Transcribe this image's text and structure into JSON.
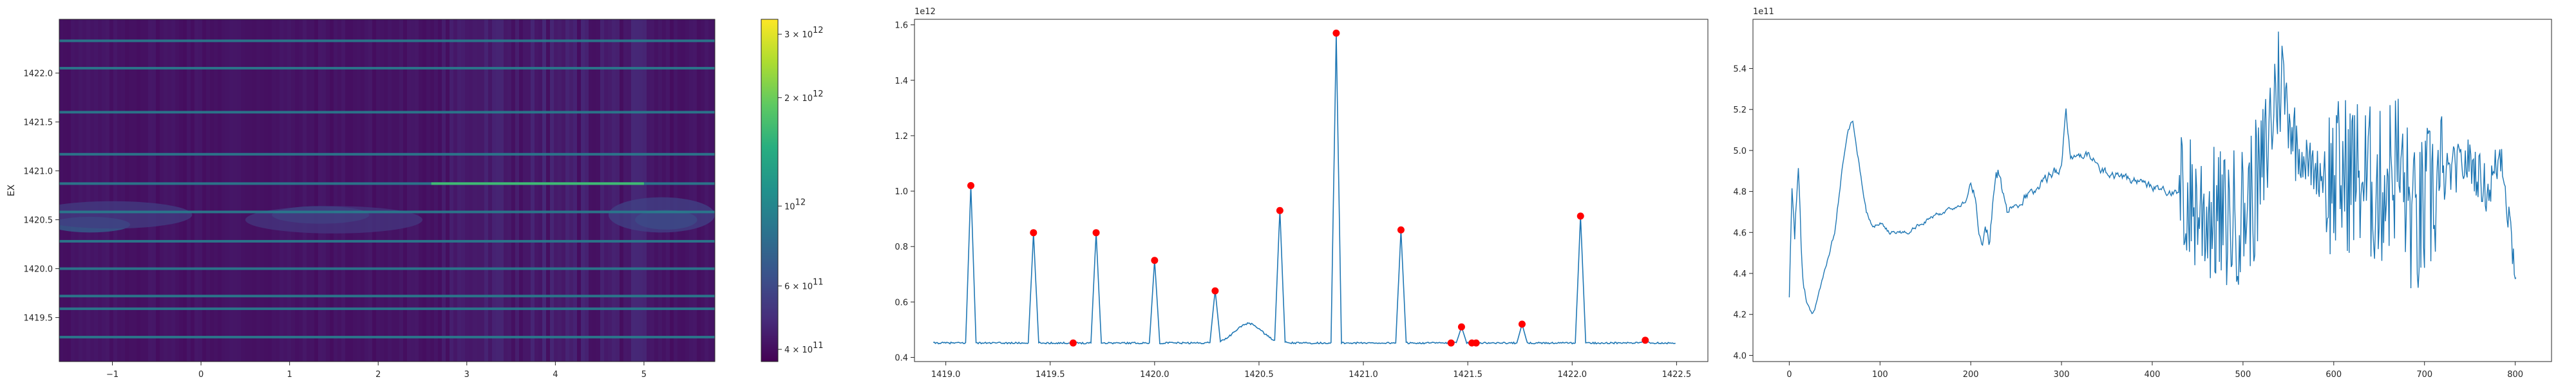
{
  "colors": {
    "line": "#1f77b4",
    "peak": "#ff0000",
    "axis": "#262626",
    "cmap": [
      "#440154",
      "#472d7b",
      "#3b528b",
      "#2c728e",
      "#21918c",
      "#28ae80",
      "#5ec962",
      "#addc30",
      "#fde725"
    ]
  },
  "chart_data": [
    {
      "type": "heatmap",
      "title": "",
      "xlabel": "",
      "ylabel": "EX",
      "xlim": [
        -1.6,
        5.8
      ],
      "ylim": [
        1419.05,
        1422.55
      ],
      "x_ticks": [
        -1,
        0,
        1,
        2,
        3,
        4,
        5
      ],
      "x_tick_labels": [
        "−1",
        "0",
        "1",
        "2",
        "3",
        "4",
        "5"
      ],
      "y_ticks": [
        1419.5,
        1420.0,
        1420.5,
        1421.0,
        1421.5,
        1422.0
      ],
      "y_tick_labels": [
        "1419.5",
        "1420.0",
        "1420.5",
        "1421.0",
        "1421.5",
        "1422.0"
      ],
      "bright_rows": [
        1419.3,
        1419.59,
        1419.72,
        1420.0,
        1420.28,
        1420.58,
        1420.87,
        1421.17,
        1421.6,
        1422.05,
        1422.33
      ],
      "colorbar": {
        "scale": "log",
        "range": [
          370000000000.0,
          3300000000000.0
        ],
        "ticks": [
          400000000000.0,
          600000000000.0,
          1000000000000.0,
          2000000000000.0,
          3000000000000.0
        ],
        "tick_labels": [
          {
            "base": "4 × 10",
            "exp": "11"
          },
          {
            "base": "6 × 10",
            "exp": "11"
          },
          {
            "base": "10",
            "exp": "12"
          },
          {
            "base": "2 × 10",
            "exp": "12"
          },
          {
            "base": "3 × 10",
            "exp": "12"
          }
        ]
      }
    },
    {
      "type": "line",
      "title": "",
      "xlabel": "",
      "ylabel": "",
      "xlim": [
        1418.85,
        1422.65
      ],
      "ylim": [
        0.385,
        1.62
      ],
      "scale_label": "1e12",
      "x_ticks": [
        1419.0,
        1419.5,
        1420.0,
        1420.5,
        1421.0,
        1421.5,
        1422.0,
        1422.5
      ],
      "x_tick_labels": [
        "1419.0",
        "1419.5",
        "1420.0",
        "1420.5",
        "1421.0",
        "1421.5",
        "1422.0",
        "1422.5"
      ],
      "y_ticks": [
        0.4,
        0.6,
        0.8,
        1.0,
        1.2,
        1.4,
        1.6
      ],
      "y_tick_labels": [
        "0.4",
        "0.6",
        "0.8",
        "1.0",
        "1.2",
        "1.4",
        "1.6"
      ],
      "baseline": 0.452,
      "x_end": 1422.5,
      "spikes": [
        [
          1419.12,
          1.02
        ],
        [
          1419.42,
          0.85
        ],
        [
          1419.72,
          0.85
        ],
        [
          1420.0,
          0.75
        ],
        [
          1420.29,
          0.64
        ],
        [
          1420.6,
          0.93
        ],
        [
          1420.87,
          1.57
        ],
        [
          1421.18,
          0.86
        ],
        [
          1421.47,
          0.51
        ],
        [
          1421.76,
          0.52
        ],
        [
          1422.04,
          0.91
        ],
        [
          1422.35,
          0.462
        ]
      ],
      "bump": {
        "center": 1420.45,
        "width": 0.09,
        "height": 0.07
      },
      "peaks": {
        "x": [
          1419.12,
          1419.42,
          1419.61,
          1419.72,
          1420.0,
          1420.29,
          1420.6,
          1420.87,
          1421.18,
          1421.42,
          1421.47,
          1421.52,
          1421.54,
          1421.76,
          1422.04,
          1422.35
        ],
        "y": [
          1.02,
          0.85,
          0.452,
          0.85,
          0.75,
          0.64,
          0.93,
          1.57,
          0.86,
          0.452,
          0.51,
          0.452,
          0.452,
          0.52,
          0.91,
          0.462
        ]
      }
    },
    {
      "type": "line",
      "title": "",
      "xlabel": "",
      "ylabel": "",
      "xlim": [
        -40,
        840
      ],
      "ylim": [
        3.97,
        5.64
      ],
      "scale_label": "1e11",
      "x_ticks": [
        0,
        100,
        200,
        300,
        400,
        500,
        600,
        700,
        800
      ],
      "x_tick_labels": [
        "0",
        "100",
        "200",
        "300",
        "400",
        "500",
        "600",
        "700",
        "800"
      ],
      "y_ticks": [
        4.0,
        4.2,
        4.4,
        4.6,
        4.8,
        5.0,
        5.2,
        5.4
      ],
      "y_tick_labels": [
        "4.0",
        "4.2",
        "4.4",
        "4.6",
        "4.8",
        "5.0",
        "5.2",
        "5.4"
      ],
      "n_points": 802,
      "anchors": [
        [
          0,
          4.3
        ],
        [
          3,
          4.85
        ],
        [
          6,
          4.6
        ],
        [
          10,
          4.88
        ],
        [
          14,
          4.4
        ],
        [
          18,
          4.3
        ],
        [
          25,
          4.2
        ],
        [
          30,
          4.25
        ],
        [
          38,
          4.4
        ],
        [
          50,
          4.6
        ],
        [
          58,
          4.9
        ],
        [
          65,
          5.1
        ],
        [
          70,
          5.15
        ],
        [
          78,
          4.9
        ],
        [
          85,
          4.7
        ],
        [
          92,
          4.62
        ],
        [
          100,
          4.65
        ],
        [
          110,
          4.6
        ],
        [
          130,
          4.6
        ],
        [
          160,
          4.68
        ],
        [
          195,
          4.75
        ],
        [
          200,
          4.85
        ],
        [
          210,
          4.6
        ],
        [
          220,
          4.58
        ],
        [
          230,
          4.9
        ],
        [
          240,
          4.7
        ],
        [
          260,
          4.78
        ],
        [
          280,
          4.85
        ],
        [
          300,
          4.92
        ],
        [
          305,
          5.2
        ],
        [
          310,
          4.95
        ],
        [
          330,
          4.98
        ],
        [
          345,
          4.9
        ],
        [
          380,
          4.85
        ],
        [
          400,
          4.82
        ],
        [
          420,
          4.8
        ],
        [
          440,
          4.75
        ],
        [
          460,
          4.7
        ],
        [
          480,
          4.65
        ],
        [
          500,
          4.7
        ],
        [
          520,
          4.85
        ],
        [
          540,
          5.4
        ],
        [
          560,
          5.0
        ],
        [
          580,
          4.9
        ],
        [
          600,
          4.85
        ],
        [
          620,
          4.9
        ],
        [
          650,
          4.8
        ],
        [
          670,
          4.95
        ],
        [
          690,
          4.6
        ],
        [
          710,
          4.8
        ],
        [
          730,
          4.9
        ],
        [
          750,
          4.95
        ],
        [
          770,
          4.8
        ],
        [
          785,
          5.0
        ],
        [
          795,
          4.6
        ],
        [
          801,
          4.4
        ]
      ],
      "noise_regions": [
        {
          "from": 0,
          "to": 20,
          "amp": 0.1
        },
        {
          "from": 200,
          "to": 230,
          "amp": 0.1
        },
        {
          "from": 230,
          "to": 300,
          "amp": 0.05
        },
        {
          "from": 300,
          "to": 430,
          "amp": 0.04
        },
        {
          "from": 430,
          "to": 545,
          "amp": 0.35
        },
        {
          "from": 545,
          "to": 560,
          "amp": 0.2
        },
        {
          "from": 560,
          "to": 590,
          "amp": 0.12
        },
        {
          "from": 590,
          "to": 720,
          "amp": 0.4
        },
        {
          "from": 720,
          "to": 802,
          "amp": 0.12
        }
      ]
    }
  ]
}
